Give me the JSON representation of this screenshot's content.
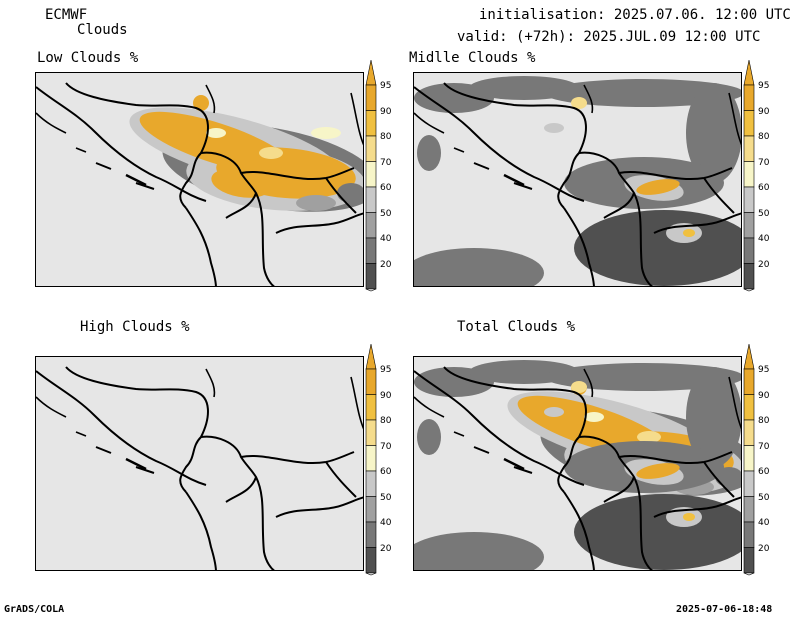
{
  "header": {
    "model": "ECMWF",
    "product": "Clouds",
    "init": "initialisation: 2025.07.06. 12:00 UTC",
    "valid": "valid: (+72h): 2025.JUL.09 12:00 UTC"
  },
  "panels": [
    {
      "title": "Low Clouds %"
    },
    {
      "title": "Midlle Clouds %"
    },
    {
      "title": "High Clouds %"
    },
    {
      "title": "Total Clouds %"
    }
  ],
  "legend": {
    "levels": [
      "95",
      "90",
      "80",
      "70",
      "60",
      "50",
      "40",
      "20"
    ],
    "colors": {
      "c95": "#e8a82c",
      "c90": "#f0c040",
      "c80": "#f5dc8c",
      "c70": "#f7f5c8",
      "c60": "#c8c8c8",
      "c50": "#a0a0a0",
      "c40": "#787878",
      "c20": "#505050",
      "background": "#e6e6e6"
    }
  },
  "footer": {
    "left": "GrADS/COLA",
    "right": "2025-07-06-18:48"
  }
}
